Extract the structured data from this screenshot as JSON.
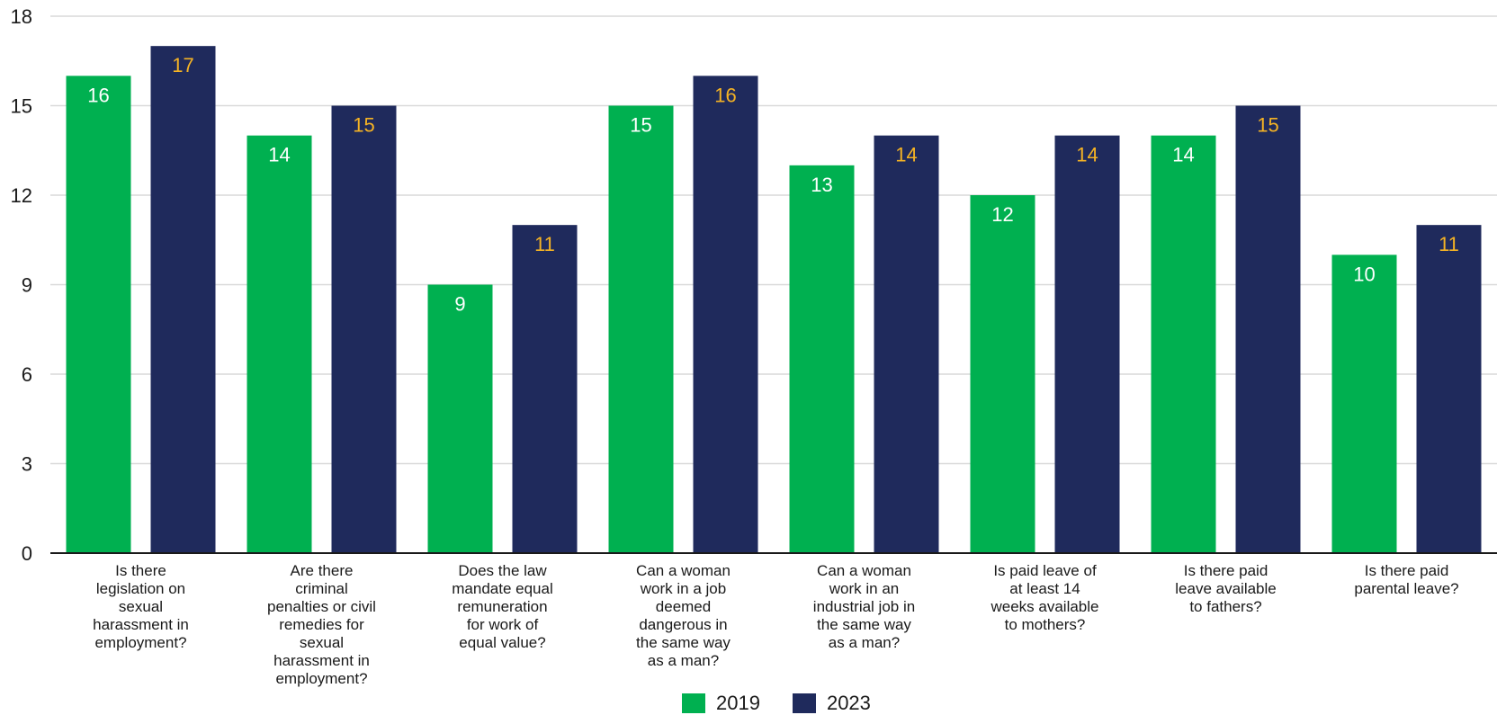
{
  "chart_data": {
    "type": "bar",
    "categories": [
      "Is there legislation on sexual harassment in employment?",
      "Are there criminal penalties or civil remedies for sexual harassment in employment?",
      "Does the law mandate equal remuneration for work of equal value?",
      "Can a woman work in a job deemed dangerous in the same way as a man?",
      "Can a woman work in an industrial job in the same way as a man?",
      "Is paid leave of at least 14 weeks available to mothers?",
      "Is there paid leave available to fathers?",
      "Is there paid parental leave?"
    ],
    "category_lines": [
      [
        "Is there",
        "legislation on",
        "sexual",
        "harassment in",
        "employment?"
      ],
      [
        "Are there",
        "criminal",
        "penalties or civil",
        "remedies for",
        "sexual",
        "harassment in",
        "employment?"
      ],
      [
        "Does the law",
        "mandate equal",
        "remuneration",
        "for work of",
        "equal value?"
      ],
      [
        "Can a woman",
        "work in a job",
        "deemed",
        "dangerous in",
        "the same way",
        "as a man?"
      ],
      [
        "Can a woman",
        "work in an",
        "industrial job in",
        "the same way",
        "as a man?"
      ],
      [
        "Is paid leave of",
        "at least 14",
        "weeks available",
        "to mothers?"
      ],
      [
        "Is there paid",
        "leave available",
        "to fathers?"
      ],
      [
        "Is there paid",
        "parental leave?"
      ]
    ],
    "series": [
      {
        "name": "2019",
        "values": [
          16,
          14,
          9,
          15,
          13,
          12,
          14,
          10
        ],
        "color": "#00b050",
        "label_color": "#ffffff"
      },
      {
        "name": "2023",
        "values": [
          17,
          15,
          11,
          16,
          14,
          14,
          15,
          11
        ],
        "color": "#1f2a5c",
        "label_color": "#f5b324"
      }
    ],
    "yticks": [
      0,
      3,
      6,
      9,
      12,
      15,
      18
    ],
    "ylim": [
      0,
      18
    ],
    "grid": true,
    "legend_position": "bottom-center"
  }
}
